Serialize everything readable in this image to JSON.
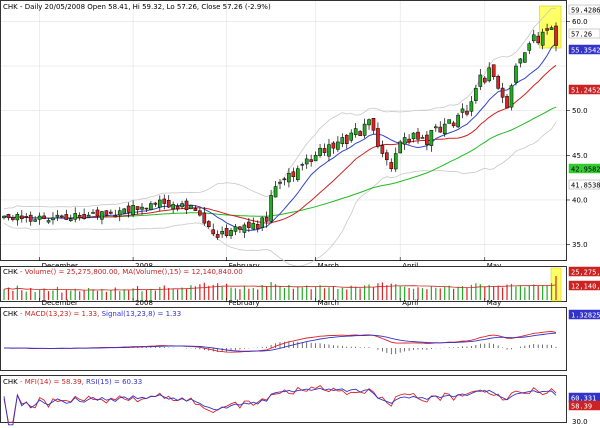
{
  "header": {
    "symbol": "CHK",
    "text": "- Daily 20/05/2008 Open 58.41, Hi 59.32, Lo 57.26, Close 57.26 (-2.9%)"
  },
  "price_panel": {
    "y_ticks": [
      "60.0",
      "55.3542",
      "50.0",
      "45.0",
      "42.9582",
      "41.8538",
      "40.0",
      "35.0"
    ],
    "badges": [
      {
        "label": "59.4286",
        "color": "#000000",
        "bg": "#ffffff"
      },
      {
        "label": "57.26",
        "color": "#000000",
        "bg": "#ffffff"
      },
      {
        "label": "55.3542",
        "color": "#ffffff",
        "bg": "#3333cc"
      },
      {
        "label": "51.2452",
        "color": "#ffffff",
        "bg": "#cc2222"
      },
      {
        "label": "42.9582",
        "color": "#000000",
        "bg": "#33cc33"
      },
      {
        "label": "41.8538",
        "color": "#000000",
        "bg": "#ffffff"
      }
    ],
    "x_labels": [
      "December",
      "2008",
      "February",
      "March",
      "April",
      "May"
    ]
  },
  "volume_panel": {
    "symbol": "CHK",
    "text": "- Volume() = 25,275,800.00, MA(Volume(),15) = 12,140,840.00",
    "badges": [
      {
        "label": "25,275,800",
        "color": "#ffffff",
        "bg": "#cc2222"
      },
      {
        "label": "12,140,840",
        "color": "#ffffff",
        "bg": "#cc2222"
      }
    ],
    "x_labels": [
      "December",
      "2008",
      "February",
      "March",
      "April",
      "May"
    ]
  },
  "macd_panel": {
    "symbol": "CHK",
    "text1": "- MACD(13,23) = 1.33, ",
    "text2": "Signal(13,23,8) = 1.33",
    "badges": [
      {
        "label": "1.32825",
        "color": "#ffffff",
        "bg": "#3333cc"
      }
    ]
  },
  "rsi_panel": {
    "symbol": "CHK",
    "text1": "- MFI(14) = 58.39, ",
    "text2": "RSI(15) = 60.33",
    "badges": [
      {
        "label": "60.331",
        "color": "#ffffff",
        "bg": "#3333cc"
      },
      {
        "label": "58.39",
        "color": "#ffffff",
        "bg": "#cc2222"
      }
    ],
    "y_ticks": [
      "30.0"
    ]
  },
  "chart_data": {
    "type": "candlestick",
    "title": "CHK - Daily 20/05/2008 Open 58.41, Hi 59.32, Lo 57.26, Close 57.26 (-2.9%)",
    "ylim": [
      33.5,
      61.5
    ],
    "grid": true,
    "colors": {
      "up": "#22aa22",
      "down": "#dd2222",
      "ma_fast": "#3344cc",
      "ma_mid": "#cc2222",
      "ma_slow": "#22bb22",
      "bb": "#c8c8c8",
      "highlight": "#ffff66"
    },
    "close": [
      38.2,
      38.0,
      37.8,
      38.4,
      37.9,
      38.1,
      37.6,
      37.8,
      38.2,
      37.9,
      37.7,
      38.0,
      38.3,
      38.1,
      37.8,
      37.9,
      38.5,
      38.0,
      37.9,
      38.3,
      38.6,
      38.2,
      38.7,
      38.3,
      38.5,
      38.1,
      38.8,
      39.0,
      38.6,
      39.4,
      38.9,
      39.2,
      39.0,
      39.6,
      39.5,
      40.0,
      39.6,
      39.2,
      39.5,
      39.0,
      39.6,
      38.9,
      39.4,
      38.8,
      38.3,
      37.4,
      37.0,
      36.2,
      35.8,
      36.5,
      36.0,
      36.6,
      37.0,
      36.7,
      37.2,
      36.9,
      37.4,
      36.8,
      38.0,
      37.6,
      40.5,
      41.5,
      42.0,
      42.3,
      43.0,
      42.6,
      43.5,
      44.0,
      44.6,
      44.3,
      45.0,
      45.8,
      45.3,
      46.2,
      45.8,
      46.5,
      47.0,
      46.3,
      47.5,
      48.0,
      47.2,
      48.5,
      49.0,
      47.8,
      46.0,
      45.2,
      44.5,
      43.5,
      45.2,
      46.5,
      47.0,
      46.5,
      47.5,
      46.8,
      47.0,
      46.2,
      47.8,
      48.2,
      47.6,
      48.5,
      49.0,
      48.3,
      49.5,
      50.2,
      49.6,
      51.0,
      52.5,
      54.0,
      53.2,
      54.8,
      53.8,
      52.5,
      51.5,
      50.3,
      52.8,
      55.0,
      55.8,
      56.5,
      57.5,
      58.5,
      57.6,
      58.8,
      59.0,
      59.3,
      57.3
    ],
    "volume": [
      0.45,
      0.52,
      0.38,
      0.6,
      0.41,
      0.35,
      0.5,
      0.33,
      0.42,
      0.48,
      0.37,
      0.4,
      0.55,
      0.31,
      0.44,
      0.39,
      0.47,
      0.36,
      0.41,
      0.5,
      0.43,
      0.38,
      0.46,
      0.34,
      0.4,
      0.52,
      0.37,
      0.45,
      0.41,
      0.49,
      0.58,
      0.36,
      0.42,
      0.46,
      0.39,
      0.54,
      0.61,
      0.5,
      0.47,
      0.44,
      0.52,
      0.48,
      0.62,
      0.57,
      0.66,
      0.72,
      0.59,
      0.63,
      0.7,
      0.55,
      0.68,
      0.52,
      0.49,
      0.45,
      0.58,
      0.47,
      0.5,
      0.44,
      0.62,
      0.56,
      0.75,
      0.66,
      0.58,
      0.5,
      0.63,
      0.47,
      0.55,
      0.52,
      0.6,
      0.45,
      0.57,
      0.62,
      0.49,
      0.53,
      0.58,
      0.46,
      0.51,
      0.44,
      0.6,
      0.56,
      0.48,
      0.61,
      0.65,
      0.52,
      0.7,
      0.73,
      0.62,
      0.68,
      0.66,
      0.58,
      0.55,
      0.5,
      0.47,
      0.53,
      0.49,
      0.45,
      0.56,
      0.51,
      0.48,
      0.54,
      0.6,
      0.47,
      0.52,
      0.58,
      0.5,
      0.63,
      0.7,
      0.66,
      0.55,
      0.62,
      0.58,
      0.6,
      0.52,
      0.64,
      0.67,
      0.56,
      0.59,
      0.53,
      0.61,
      0.65,
      0.58,
      0.62,
      0.6,
      0.7,
      1.0
    ],
    "panels": [
      "price",
      "volume",
      "macd",
      "mfi_rsi"
    ]
  }
}
